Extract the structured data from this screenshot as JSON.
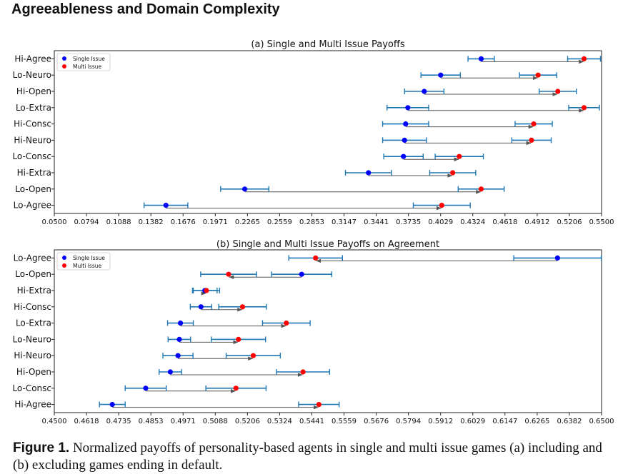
{
  "page_title": "Agreeableness and Domain Complexity",
  "caption": {
    "label": "Figure 1.",
    "text": "Normalized payoffs of personality-based agents in single and multi issue games (a) including and (b) excluding games ending in default."
  },
  "colors": {
    "single": "#0000ff",
    "multi": "#ff0000",
    "error_bar": "#1f77b4",
    "arrow": "#555555"
  },
  "chart_data": [
    {
      "type": "dot-errorbar",
      "title": "(a) Single and Multi Issue Payoffs",
      "xlim": [
        0.05,
        0.55
      ],
      "xtick_labels": [
        "0.0500",
        "0.0794",
        "0.1088",
        "0.1382",
        "0.1676",
        "0.1971",
        "0.2265",
        "0.2559",
        "0.2853",
        "0.3147",
        "0.3441",
        "0.3735",
        "0.4029",
        "0.4324",
        "0.4618",
        "0.4912",
        "0.5206",
        "0.5500"
      ],
      "legend": {
        "position": "top-left",
        "entries": [
          "Single Issue",
          "Multi Issue"
        ]
      },
      "categories": [
        "Hi-Agree",
        "Lo-Neuro",
        "Hi-Open",
        "Lo-Extra",
        "Hi-Consc",
        "Hi-Neuro",
        "Lo-Consc",
        "Hi-Extra",
        "Lo-Open",
        "Lo-Agree"
      ],
      "series": [
        {
          "name": "Single Issue",
          "values": [
            0.44,
            0.403,
            0.388,
            0.373,
            0.371,
            0.37,
            0.369,
            0.337,
            0.224,
            0.152
          ],
          "errors": [
            0.012,
            0.018,
            0.018,
            0.019,
            0.021,
            0.02,
            0.018,
            0.021,
            0.022,
            0.02
          ]
        },
        {
          "name": "Multi Issue",
          "values": [
            0.534,
            0.492,
            0.51,
            0.534,
            0.488,
            0.486,
            0.42,
            0.414,
            0.44,
            0.404
          ],
          "errors": [
            0.015,
            0.017,
            0.017,
            0.014,
            0.017,
            0.018,
            0.022,
            0.021,
            0.021,
            0.026
          ]
        }
      ]
    },
    {
      "type": "dot-errorbar",
      "title": "(b) Single and Multi Issue Payoffs on Agreement",
      "xlim": [
        0.45,
        0.65
      ],
      "xtick_labels": [
        "0.4500",
        "0.4618",
        "0.4735",
        "0.4853",
        "0.4971",
        "0.5088",
        "0.5206",
        "0.5324",
        "0.5441",
        "0.5559",
        "0.5676",
        "0.5794",
        "0.5912",
        "0.6029",
        "0.6147",
        "0.6265",
        "0.6382",
        "0.6500"
      ],
      "legend": {
        "position": "top-left",
        "entries": [
          "Single Issue",
          "Multi Issue"
        ]
      },
      "categories": [
        "Lo-Agree",
        "Lo-Open",
        "Hi-Extra",
        "Hi-Consc",
        "Lo-Extra",
        "Lo-Neuro",
        "Hi-Neuro",
        "Hi-Open",
        "Lo-Consc",
        "Hi-Agree"
      ],
      "series": [
        {
          "name": "Single Issue",
          "values": [
            0.6339,
            0.5404,
            0.505,
            0.5036,
            0.4961,
            0.4957,
            0.4952,
            0.4924,
            0.4834,
            0.4712
          ],
          "errors": [
            0.016,
            0.011,
            0.0045,
            0.0039,
            0.0047,
            0.0041,
            0.0055,
            0.0041,
            0.0075,
            0.0047
          ]
        },
        {
          "name": "Multi Issue",
          "values": [
            0.5455,
            0.5137,
            0.5056,
            0.5188,
            0.5348,
            0.5173,
            0.5227,
            0.5409,
            0.5164,
            0.5467
          ],
          "errors": [
            0.0098,
            0.0102,
            0.0048,
            0.0087,
            0.0087,
            0.0099,
            0.0099,
            0.0097,
            0.011,
            0.0074
          ]
        }
      ]
    }
  ]
}
